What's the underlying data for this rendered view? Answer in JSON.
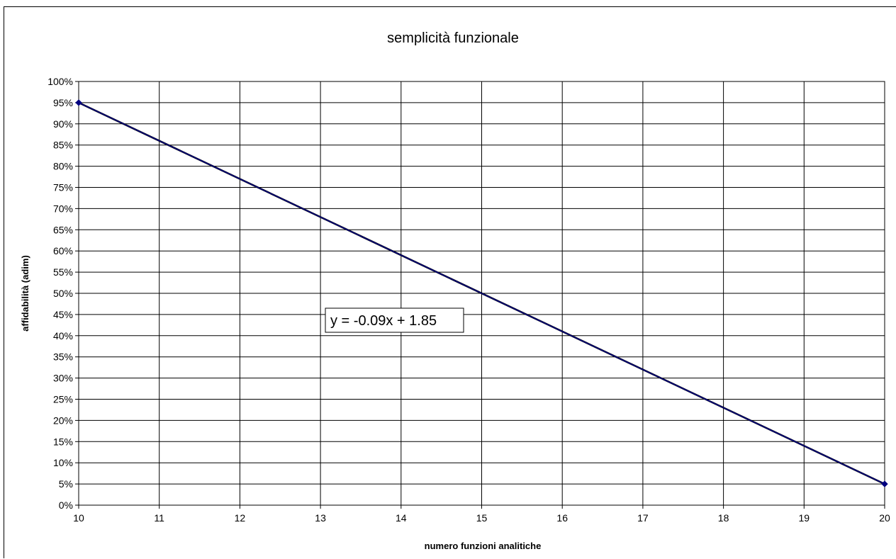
{
  "chart_data": {
    "type": "line",
    "title": "semplicità funzionale",
    "xlabel": "numero funzioni analitiche",
    "ylabel": "affidabilità (adim)",
    "xlim": [
      10,
      20
    ],
    "ylim": [
      0,
      1
    ],
    "x_ticks": [
      10,
      11,
      12,
      13,
      14,
      15,
      16,
      17,
      18,
      19,
      20
    ],
    "y_ticks": [
      "0%",
      "5%",
      "10%",
      "15%",
      "20%",
      "25%",
      "30%",
      "35%",
      "40%",
      "45%",
      "50%",
      "55%",
      "60%",
      "65%",
      "70%",
      "75%",
      "80%",
      "85%",
      "90%",
      "95%",
      "100%"
    ],
    "grid": true,
    "series": [
      {
        "x": [
          10,
          20
        ],
        "y": [
          0.95,
          0.05
        ],
        "color": "#000080"
      }
    ],
    "trendline": {
      "slope": -0.09,
      "intercept": 1.85,
      "color": "#000000"
    },
    "annotation": "y = -0.09x + 1.85"
  }
}
